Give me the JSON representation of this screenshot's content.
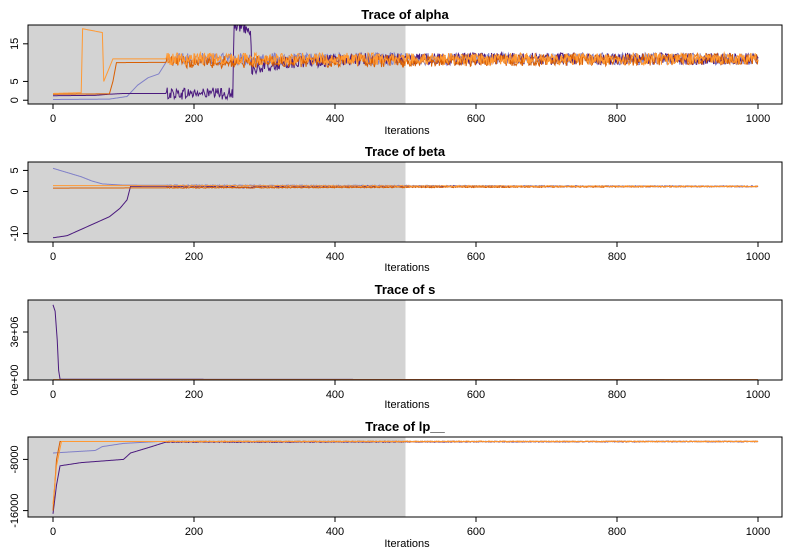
{
  "chart_data": [
    {
      "type": "line",
      "title": "Trace of  alpha",
      "xlabel": "Iterations",
      "ylabel": "",
      "xlim": [
        0,
        1000
      ],
      "ylim": [
        -1,
        20
      ],
      "x_ticks": [
        "0",
        "200",
        "400",
        "600",
        "800",
        "1000"
      ],
      "y_ticks": [
        "0",
        "5",
        "15"
      ],
      "y_tick_values": [
        0,
        5,
        15
      ],
      "warmup_end": 500,
      "series": [
        {
          "color": "#8080c8",
          "values": [
            [
              0,
              0.2
            ],
            [
              80,
              0.3
            ],
            [
              105,
              1
            ],
            [
              120,
              4
            ],
            [
              135,
              6
            ],
            [
              150,
              7
            ],
            [
              160,
              10
            ],
            [
              175,
              11
            ],
            [
              200,
              11
            ],
            [
              1000,
              11
            ]
          ]
        },
        {
          "color": "#4b1a7e",
          "values": [
            [
              0,
              1.2
            ],
            [
              60,
              1.3
            ],
            [
              80,
              1.6
            ],
            [
              100,
              1.8
            ],
            [
              255,
              1.8
            ],
            [
              257,
              20
            ],
            [
              280,
              19
            ],
            [
              282,
              8
            ],
            [
              330,
              10
            ],
            [
              400,
              10.5
            ],
            [
              440,
              11
            ],
            [
              1000,
              11
            ]
          ]
        },
        {
          "color": "#d95f02",
          "values": [
            [
              0,
              1.6
            ],
            [
              80,
              1.7
            ],
            [
              85,
              5
            ],
            [
              90,
              10
            ],
            [
              1000,
              11
            ]
          ]
        },
        {
          "color": "#ff9933",
          "values": [
            [
              0,
              1.8
            ],
            [
              40,
              2
            ],
            [
              42,
              19
            ],
            [
              70,
              18
            ],
            [
              72,
              5
            ],
            [
              85,
              11
            ],
            [
              1000,
              11
            ]
          ]
        }
      ]
    },
    {
      "type": "line",
      "title": "Trace of  beta",
      "xlabel": "Iterations",
      "ylabel": "",
      "xlim": [
        0,
        1000
      ],
      "ylim": [
        -12,
        7
      ],
      "x_ticks": [
        "0",
        "200",
        "400",
        "600",
        "800",
        "1000"
      ],
      "y_ticks": [
        "-10",
        "0",
        "5"
      ],
      "y_tick_values": [
        -10,
        0,
        5
      ],
      "warmup_end": 500,
      "series": [
        {
          "color": "#8080c8",
          "values": [
            [
              0,
              5.5
            ],
            [
              20,
              4.5
            ],
            [
              40,
              3.5
            ],
            [
              55,
              2.5
            ],
            [
              70,
              1.8
            ],
            [
              100,
              1.5
            ],
            [
              1000,
              1.2
            ]
          ]
        },
        {
          "color": "#4b1a7e",
          "values": [
            [
              0,
              -11
            ],
            [
              20,
              -10.5
            ],
            [
              40,
              -9
            ],
            [
              60,
              -7.5
            ],
            [
              80,
              -6
            ],
            [
              95,
              -4
            ],
            [
              105,
              -2
            ],
            [
              110,
              1.2
            ],
            [
              255,
              1.2
            ],
            [
              258,
              1
            ],
            [
              283,
              0.9
            ],
            [
              285,
              1.2
            ],
            [
              1000,
              1.2
            ]
          ]
        },
        {
          "color": "#d95f02",
          "values": [
            [
              0,
              0.8
            ],
            [
              1000,
              1.2
            ]
          ]
        },
        {
          "color": "#ff9933",
          "values": [
            [
              0,
              1.4
            ],
            [
              1000,
              1.2
            ]
          ]
        }
      ]
    },
    {
      "type": "line",
      "title": "Trace of  s",
      "xlabel": "Iterations",
      "ylabel": "",
      "xlim": [
        0,
        1000
      ],
      "ylim": [
        0,
        5000000
      ],
      "x_ticks": [
        "0",
        "200",
        "400",
        "600",
        "800",
        "1000"
      ],
      "y_ticks": [
        "0e+00",
        "3e+06"
      ],
      "y_tick_values": [
        0,
        3000000
      ],
      "warmup_end": 500,
      "series": [
        {
          "color": "#8080c8",
          "values": [
            [
              0,
              15000
            ],
            [
              1000,
              15000
            ]
          ]
        },
        {
          "color": "#4b1a7e",
          "values": [
            [
              0,
              4700000
            ],
            [
              3,
              4300000
            ],
            [
              6,
              2500000
            ],
            [
              8,
              600000
            ],
            [
              10,
              50000
            ],
            [
              1000,
              15000
            ]
          ]
        },
        {
          "color": "#d95f02",
          "values": [
            [
              0,
              15000
            ],
            [
              1000,
              15000
            ]
          ]
        },
        {
          "color": "#ff9933",
          "values": [
            [
              0,
              15000
            ],
            [
              1000,
              15000
            ]
          ]
        }
      ]
    },
    {
      "type": "line",
      "title": "Trace of  lp__",
      "xlabel": "Iterations",
      "ylabel": "",
      "xlim": [
        0,
        1000
      ],
      "ylim": [
        -17000,
        -4500
      ],
      "x_ticks": [
        "0",
        "200",
        "400",
        "600",
        "800",
        "1000"
      ],
      "y_ticks": [
        "-16000",
        "-8000"
      ],
      "y_tick_values": [
        -16000,
        -8000
      ],
      "warmup_end": 500,
      "series": [
        {
          "color": "#8080c8",
          "values": [
            [
              0,
              -7000
            ],
            [
              30,
              -6800
            ],
            [
              60,
              -6600
            ],
            [
              70,
              -6000
            ],
            [
              100,
              -5500
            ],
            [
              150,
              -5200
            ],
            [
              1000,
              -5200
            ]
          ]
        },
        {
          "color": "#4b1a7e",
          "values": [
            [
              0,
              -16500
            ],
            [
              5,
              -12000
            ],
            [
              10,
              -9000
            ],
            [
              40,
              -8500
            ],
            [
              100,
              -8000
            ],
            [
              110,
              -7000
            ],
            [
              140,
              -6000
            ],
            [
              160,
              -5300
            ],
            [
              1000,
              -5200
            ]
          ]
        },
        {
          "color": "#d95f02",
          "values": [
            [
              0,
              -16000
            ],
            [
              5,
              -8000
            ],
            [
              10,
              -5200
            ],
            [
              1000,
              -5200
            ]
          ]
        },
        {
          "color": "#ff9933",
          "values": [
            [
              0,
              -15000
            ],
            [
              5,
              -9000
            ],
            [
              12,
              -5200
            ],
            [
              1000,
              -5200
            ]
          ]
        }
      ]
    }
  ]
}
